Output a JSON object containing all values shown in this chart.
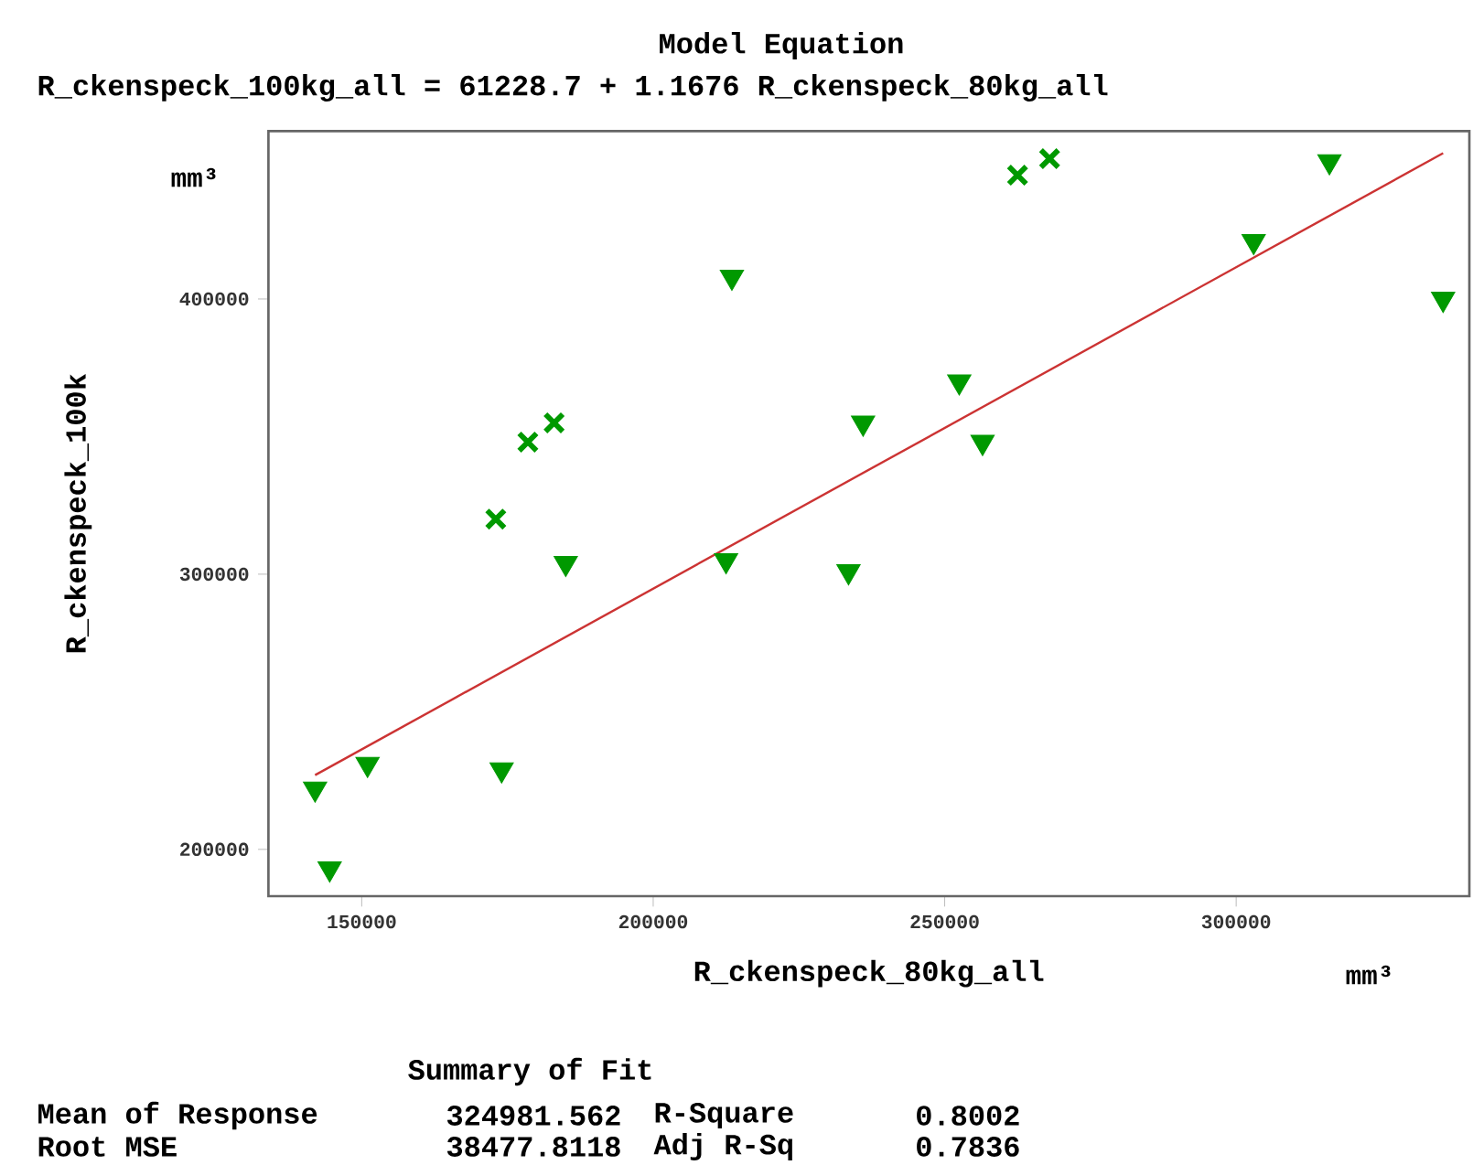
{
  "chart_data": {
    "type": "scatter",
    "title": "Model Equation",
    "subtitle": "R_ckenspeck_100kg_all = 61228.7 + 1.1676 R_ckenspeck_80kg_all",
    "xlabel": "R_ckenspeck_80kg_all",
    "ylabel": "R_ckenspeck_100k",
    "xlim": [
      134000,
      340000
    ],
    "ylim": [
      183000,
      461000
    ],
    "xticks": [
      150000,
      200000,
      250000,
      300000
    ],
    "yticks": [
      200000,
      300000,
      400000
    ],
    "series": [
      {
        "marker": "triangle",
        "color": "#009900",
        "x": [
          142000,
          144500,
          151000,
          174000,
          185000,
          213500,
          212500,
          233500,
          236000,
          252500,
          256500,
          303000,
          316000,
          335500
        ],
        "values": [
          222000,
          193000,
          231000,
          229000,
          304000,
          408000,
          305000,
          301000,
          355000,
          370000,
          348000,
          421000,
          450000,
          400000
        ]
      },
      {
        "marker": "cross",
        "color": "#009900",
        "x": [
          173000,
          178500,
          183000,
          262500,
          268000
        ],
        "values": [
          320000,
          348000,
          355000,
          445000,
          451000
        ]
      },
      {
        "type": "line",
        "marker": "none",
        "color": "#cc3333",
        "x": [
          142000,
          335500
        ],
        "values": [
          227000,
          453000
        ]
      }
    ],
    "annotations": [
      "mm³",
      "mm³",
      "Summary of Fit",
      "Mean of Response",
      "324981.562",
      "R-Square",
      "0.8002",
      "Root MSE",
      "38477.8118",
      "Adj R-Sq",
      "0.7836"
    ]
  }
}
